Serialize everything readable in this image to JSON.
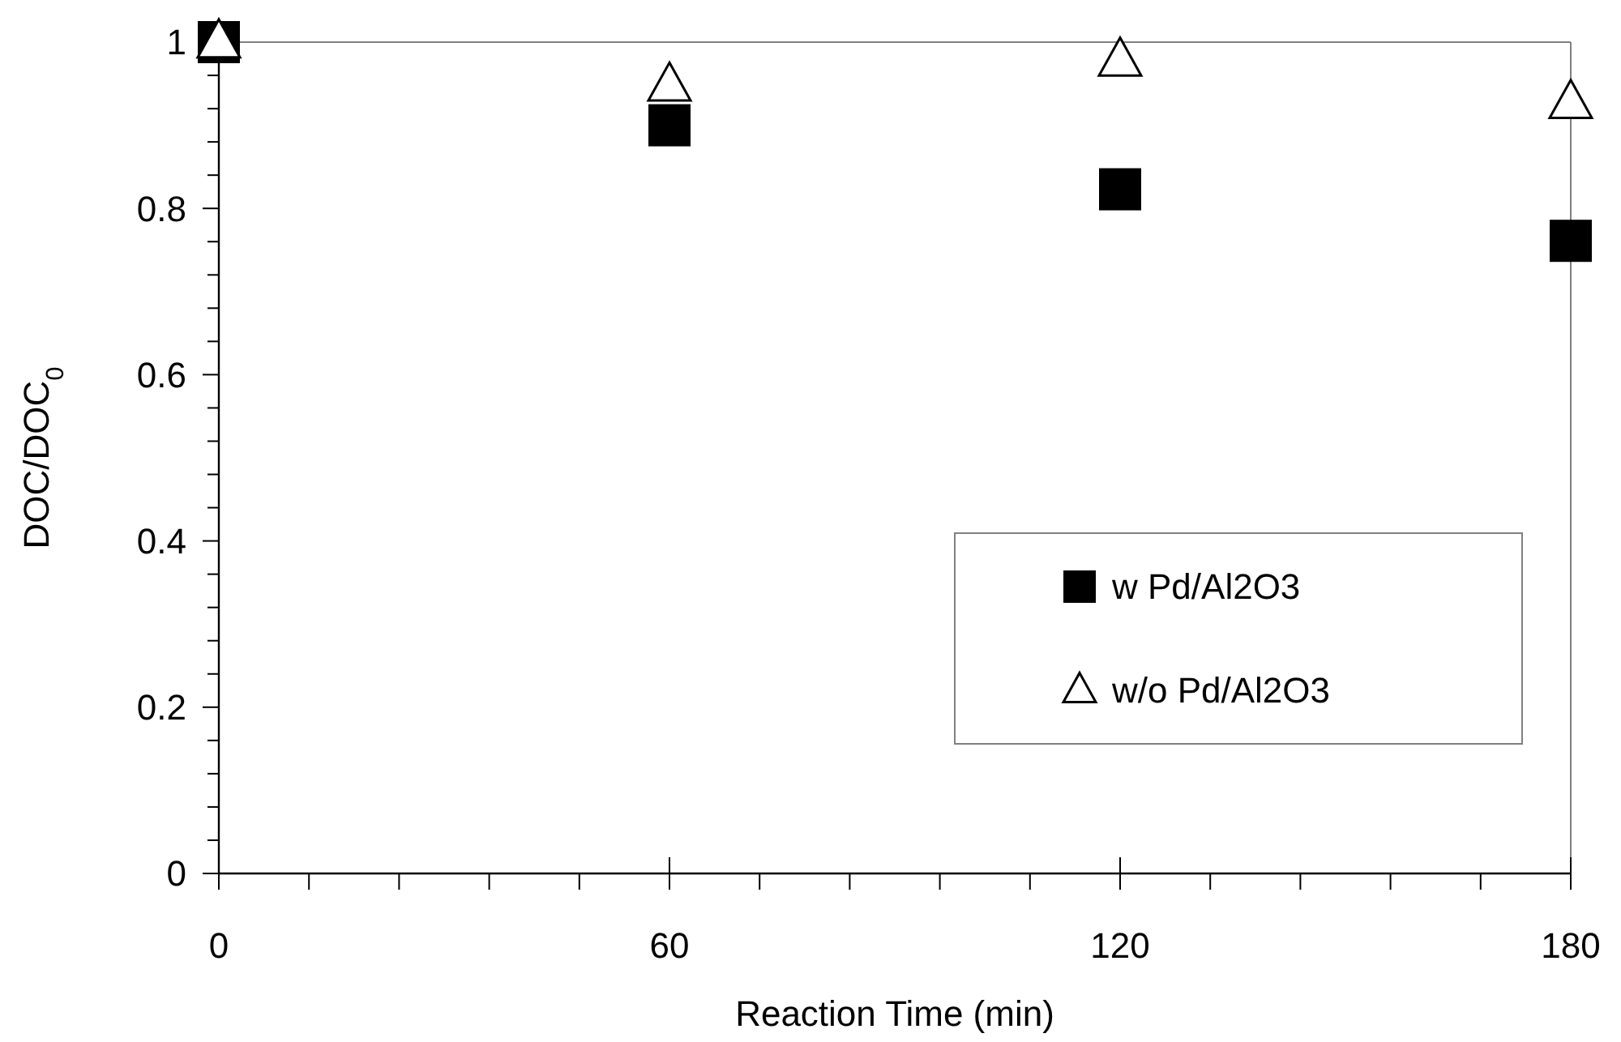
{
  "chart_data": {
    "type": "scatter",
    "xlabel": "Reaction Time (min)",
    "ylabel": "DOC/DOC$_{0}$",
    "x": [
      0,
      60,
      120,
      180
    ],
    "series": [
      {
        "name": "w Pd/Al2O3",
        "color": "#000000",
        "marker": "square",
        "values": [
          1.0,
          0.9,
          0.823,
          0.761
        ]
      },
      {
        "name": "w/o Pd/Al2O3",
        "color": "#000000",
        "marker": "triangle",
        "values": [
          1.0,
          0.948,
          0.978,
          0.927
        ]
      }
    ],
    "xlim": [
      0,
      180
    ],
    "xticks": [
      0,
      {
        "value": 12,
        "label": null
      },
      {
        "value": 24,
        "label": null
      },
      {
        "value": 36,
        "label": null
      },
      {
        "value": 48,
        "label": null
      },
      60,
      {
        "value": 72,
        "label": null
      },
      {
        "value": 84,
        "label": null
      },
      {
        "value": 96,
        "label": null
      },
      {
        "value": 108,
        "label": null
      },
      120,
      {
        "value": 132,
        "label": null
      },
      {
        "value": 144,
        "label": null
      },
      {
        "value": 156,
        "label": null
      },
      {
        "value": 168,
        "label": null
      },
      180
    ],
    "ylim": [
      0,
      1
    ],
    "yticks": [
      0,
      {
        "value": 0.04,
        "label": null
      },
      {
        "value": 0.08,
        "label": null
      },
      {
        "value": 0.12,
        "label": null
      },
      {
        "value": 0.16,
        "label": null
      },
      0.2,
      {
        "value": 0.24,
        "label": null
      },
      {
        "value": 0.28,
        "label": null
      },
      {
        "value": 0.32,
        "label": null
      },
      {
        "value": 0.36,
        "label": null
      },
      0.4,
      {
        "value": 0.44,
        "label": null
      },
      {
        "value": 0.48,
        "label": null
      },
      {
        "value": 0.52,
        "label": null
      },
      {
        "value": 0.56,
        "label": null
      },
      0.6,
      {
        "value": 0.64,
        "label": null
      },
      {
        "value": 0.68,
        "label": null
      },
      {
        "value": 0.72,
        "label": null
      },
      {
        "value": 0.76,
        "label": null
      },
      0.8,
      {
        "value": 0.84,
        "label": null
      },
      {
        "value": 0.88,
        "label": null
      },
      {
        "value": 0.92,
        "label": null
      },
      {
        "value": 0.96,
        "label": null
      },
      1
    ],
    "grid": false,
    "legend": "bottom right"
  }
}
